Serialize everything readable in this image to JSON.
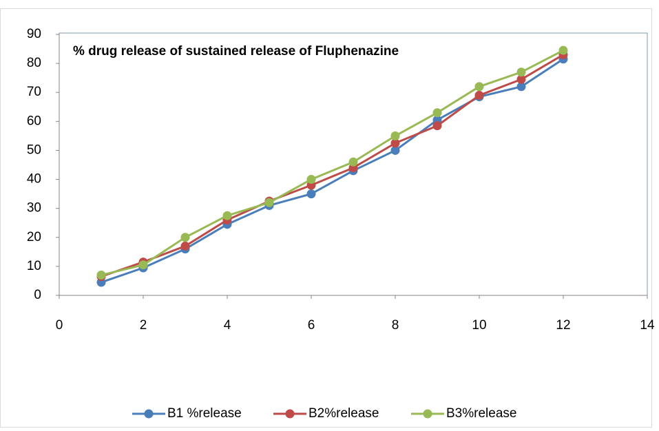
{
  "chart_data": {
    "type": "line",
    "title": "% drug release of  sustained release of Fluphenazine",
    "x": [
      1,
      2,
      3,
      4,
      5,
      6,
      7,
      8,
      9,
      10,
      11,
      12
    ],
    "series": [
      {
        "name": "B1 %release",
        "color": "#4a7ebb",
        "values": [
          4.5,
          9.5,
          16,
          24.5,
          31,
          35,
          43,
          50,
          60.5,
          68.5,
          72,
          81.5
        ]
      },
      {
        "name": "B2%release",
        "color": "#be4b48",
        "values": [
          6.5,
          11.5,
          17,
          26,
          32.5,
          38,
          44,
          52.5,
          58.5,
          69,
          74.5,
          83
        ]
      },
      {
        "name": "B3%release",
        "color": "#98b954",
        "values": [
          7,
          10.5,
          20,
          27.5,
          32,
          40,
          46,
          55,
          63,
          72,
          77,
          84.5
        ]
      }
    ],
    "xlim": [
      0,
      14
    ],
    "xticks": [
      0,
      2,
      4,
      6,
      8,
      10,
      12,
      14
    ],
    "ylim": [
      0,
      90
    ],
    "yticks": [
      0,
      10,
      20,
      30,
      40,
      50,
      60,
      70,
      80,
      90
    ],
    "grid": false,
    "legend": "bottom"
  }
}
